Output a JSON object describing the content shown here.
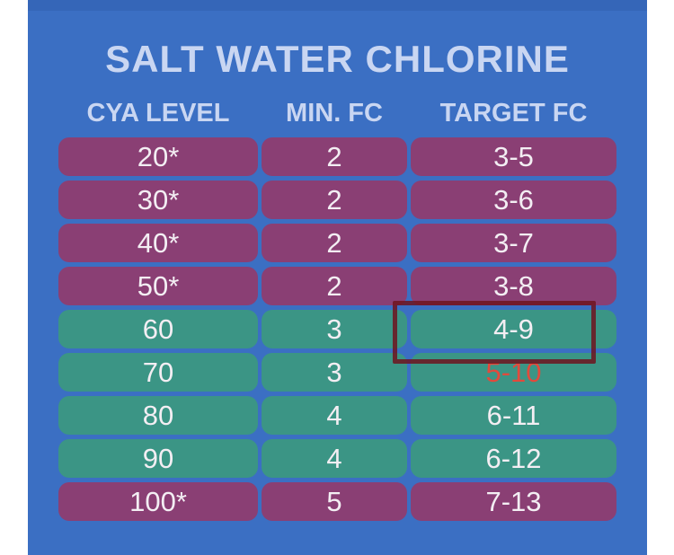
{
  "title": "SALT WATER CHLORINE",
  "headers": {
    "cya": "CYA LEVEL",
    "min": "MIN. FC",
    "target": "TARGET FC"
  },
  "rows": [
    {
      "cya": "20*",
      "min": "2",
      "target": "3-5",
      "color": "purple"
    },
    {
      "cya": "30*",
      "min": "2",
      "target": "3-6",
      "color": "purple"
    },
    {
      "cya": "40*",
      "min": "2",
      "target": "3-7",
      "color": "purple"
    },
    {
      "cya": "50*",
      "min": "2",
      "target": "3-8",
      "color": "purple"
    },
    {
      "cya": "60",
      "min": "3",
      "target": "4-9",
      "color": "green"
    },
    {
      "cya": "70",
      "min": "3",
      "target": "5-10",
      "color": "green"
    },
    {
      "cya": "80",
      "min": "4",
      "target": "6-11",
      "color": "green"
    },
    {
      "cya": "90",
      "min": "4",
      "target": "6-12",
      "color": "green"
    },
    {
      "cya": "100*",
      "min": "5",
      "target": "7-13",
      "color": "purple"
    }
  ],
  "colors": {
    "panel": "#3b6fc3",
    "purple_row": "#8a3f74",
    "green_row": "#3b9585",
    "header_text": "#c9d6f2",
    "highlight_border": "#6e141e"
  }
}
